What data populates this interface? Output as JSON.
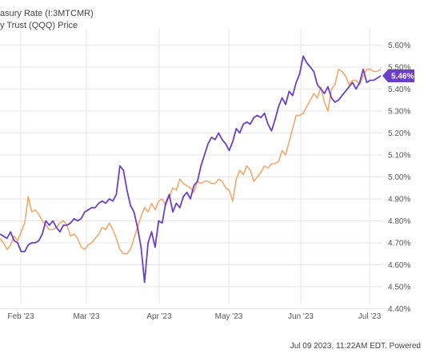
{
  "legend": {
    "line1": "asury Rate (I:3MTCMR)",
    "line2": "y Trust (QQQ) Price"
  },
  "footer": "Jul 09 2023, 11:22AM EDT. Powered",
  "colors": {
    "rate": "#6b3fc8",
    "qqq": "#f5a86a",
    "grid": "#e6e6e6",
    "badge": "#6b3fc8"
  },
  "chart_data": {
    "type": "line",
    "x_ticks": [
      "Feb '23",
      "Mar '23",
      "Apr '23",
      "May '23",
      "Jun '23",
      "Jul '23"
    ],
    "y_ticks": [
      "5.60%",
      "5.50%",
      "5.40%",
      "5.30%",
      "5.20%",
      "5.10%",
      "5.00%",
      "4.90%",
      "4.80%",
      "4.70%",
      "4.60%",
      "4.50%",
      "4.40%"
    ],
    "ylim": [
      4.38,
      5.66
    ],
    "current_value_label": "5.46%",
    "current_value": 5.46,
    "series": [
      {
        "key": "rate",
        "values": [
          4.74,
          4.73,
          4.72,
          4.75,
          4.71,
          4.7,
          4.66,
          4.66,
          4.69,
          4.7,
          4.7,
          4.71,
          4.74,
          4.8,
          4.78,
          4.8,
          4.77,
          4.75,
          4.78,
          4.78,
          4.79,
          4.81,
          4.8,
          4.81,
          4.84,
          4.85,
          4.86,
          4.86,
          4.88,
          4.89,
          4.88,
          4.9,
          4.89,
          4.92,
          5.05,
          5.03,
          4.94,
          4.87,
          4.84,
          4.77,
          4.68,
          4.52,
          4.7,
          4.75,
          4.68,
          4.8,
          4.79,
          4.88,
          4.92,
          4.84,
          4.88,
          4.86,
          4.91,
          4.93,
          4.9,
          4.96,
          4.98,
          5.05,
          5.1,
          5.15,
          5.18,
          5.17,
          5.2,
          5.17,
          5.15,
          5.12,
          5.16,
          5.22,
          5.2,
          5.24,
          5.25,
          5.24,
          5.27,
          5.28,
          5.27,
          5.29,
          5.24,
          5.21,
          5.26,
          5.32,
          5.36,
          5.33,
          5.39,
          5.37,
          5.43,
          5.47,
          5.55,
          5.52,
          5.5,
          5.48,
          5.42,
          5.4,
          5.38,
          5.41,
          5.36,
          5.34,
          5.35,
          5.37,
          5.39,
          5.41,
          5.43,
          5.4,
          5.43,
          5.49,
          5.43,
          5.44,
          5.44,
          5.45,
          5.46
        ]
      },
      {
        "key": "qqq",
        "values": [
          4.72,
          4.7,
          4.67,
          4.69,
          4.73,
          4.71,
          4.75,
          4.79,
          4.91,
          4.84,
          4.85,
          4.83,
          4.8,
          4.78,
          4.76,
          4.76,
          4.77,
          4.79,
          4.8,
          4.78,
          4.73,
          4.74,
          4.72,
          4.68,
          4.67,
          4.69,
          4.7,
          4.72,
          4.74,
          4.77,
          4.76,
          4.79,
          4.76,
          4.72,
          4.67,
          4.65,
          4.65,
          4.67,
          4.72,
          4.77,
          4.82,
          4.86,
          4.84,
          4.88,
          4.85,
          4.89,
          4.9,
          4.87,
          4.91,
          4.95,
          4.94,
          4.99,
          4.97,
          4.96,
          4.95,
          4.93,
          4.98,
          4.97,
          4.98,
          4.98,
          4.97,
          4.97,
          4.99,
          4.98,
          4.95,
          4.94,
          4.89,
          4.99,
          5.03,
          5.01,
          5.05,
          5.03,
          4.98,
          5.0,
          5.02,
          5.05,
          5.04,
          5.06,
          5.06,
          5.07,
          5.12,
          5.1,
          5.16,
          5.22,
          5.28,
          5.28,
          5.29,
          5.32,
          5.35,
          5.38,
          5.36,
          5.41,
          5.34,
          5.3,
          5.4,
          5.42,
          5.49,
          5.48,
          5.46,
          5.42,
          5.44,
          5.44,
          5.42,
          5.46,
          5.49,
          5.49,
          5.48,
          5.48,
          5.49
        ]
      }
    ]
  }
}
